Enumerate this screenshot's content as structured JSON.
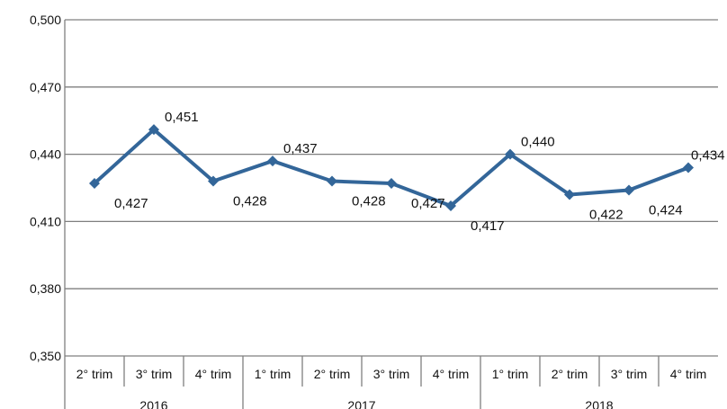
{
  "chart_data": {
    "type": "line",
    "title": "",
    "xlabel": "",
    "ylabel": "",
    "ylim": [
      0.35,
      0.5
    ],
    "y_ticks": [
      "0,500",
      "0,470",
      "0,440",
      "0,410",
      "0,380",
      "0,350"
    ],
    "categories": [
      "2° trim",
      "3° trim",
      "4° trim",
      "1° trim",
      "2° trim",
      "3° trim",
      "4° trim",
      "1° trim",
      "2° trim",
      "3° trim",
      "4° trim"
    ],
    "groups": [
      {
        "label": "2016",
        "count": 3
      },
      {
        "label": "2017",
        "count": 4
      },
      {
        "label": "2018",
        "count": 4
      }
    ],
    "series": [
      {
        "values": [
          0.427,
          0.451,
          0.428,
          0.437,
          0.428,
          0.427,
          0.417,
          0.44,
          0.422,
          0.424,
          0.434
        ],
        "labels": [
          "0,427",
          "0,451",
          "0,428",
          "0,437",
          "0,428",
          "0,427",
          "0,417",
          "0,440",
          "0,422",
          "0,424",
          "0,434"
        ]
      }
    ],
    "grid": true,
    "legend": "none",
    "colors": {
      "line": "#336699",
      "grid": "#7f7f7f",
      "axis": "#7f7f7f"
    }
  }
}
